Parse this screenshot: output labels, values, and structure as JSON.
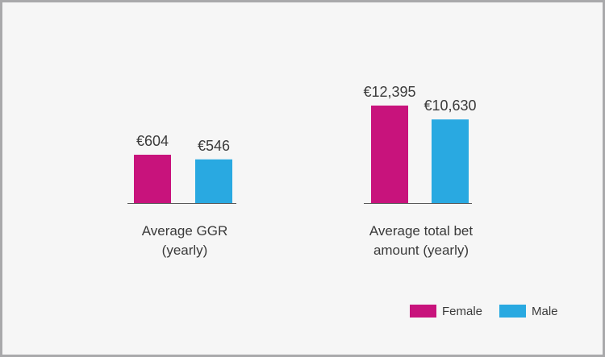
{
  "chart_data": [
    {
      "type": "bar",
      "title": "",
      "xlabel": [
        "Average GGR",
        "(yearly)"
      ],
      "ylabel": "",
      "series": [
        {
          "name": "Female",
          "values": [
            604
          ]
        },
        {
          "name": "Male",
          "values": [
            546
          ]
        }
      ],
      "data_labels": [
        "€604",
        "€546"
      ]
    },
    {
      "type": "bar",
      "title": "",
      "xlabel": [
        "Average total bet",
        "amount (yearly)"
      ],
      "ylabel": "",
      "series": [
        {
          "name": "Female",
          "values": [
            12395
          ]
        },
        {
          "name": "Male",
          "values": [
            10630
          ]
        }
      ],
      "data_labels": [
        "€12,395",
        "€10,630"
      ]
    }
  ],
  "legend": {
    "position": "bottom-right",
    "items": [
      {
        "label": "Female",
        "color": "#c8137c"
      },
      {
        "label": "Male",
        "color": "#29a9e1"
      }
    ]
  },
  "colors": {
    "female": "#c8137c",
    "male": "#29a9e1",
    "background": "#f6f6f6",
    "border": "#a9a9ab"
  }
}
